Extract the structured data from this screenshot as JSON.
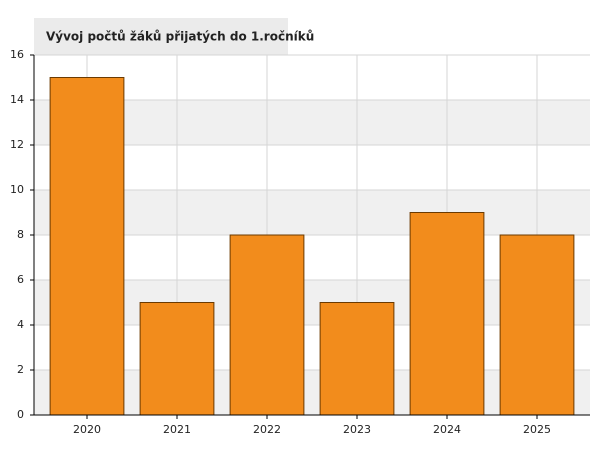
{
  "chart_data": {
    "type": "bar",
    "title": "Vývoj počtů žáků přijatých do 1.ročníků",
    "categories": [
      "2020",
      "2021",
      "2022",
      "2023",
      "2024",
      "2025"
    ],
    "values": [
      15,
      5,
      8,
      5,
      9,
      8
    ],
    "color": "#f28c1c",
    "ylim": [
      0,
      16
    ],
    "yticks": [
      0,
      2,
      4,
      6,
      8,
      10,
      12,
      14,
      16
    ],
    "grid": true
  }
}
